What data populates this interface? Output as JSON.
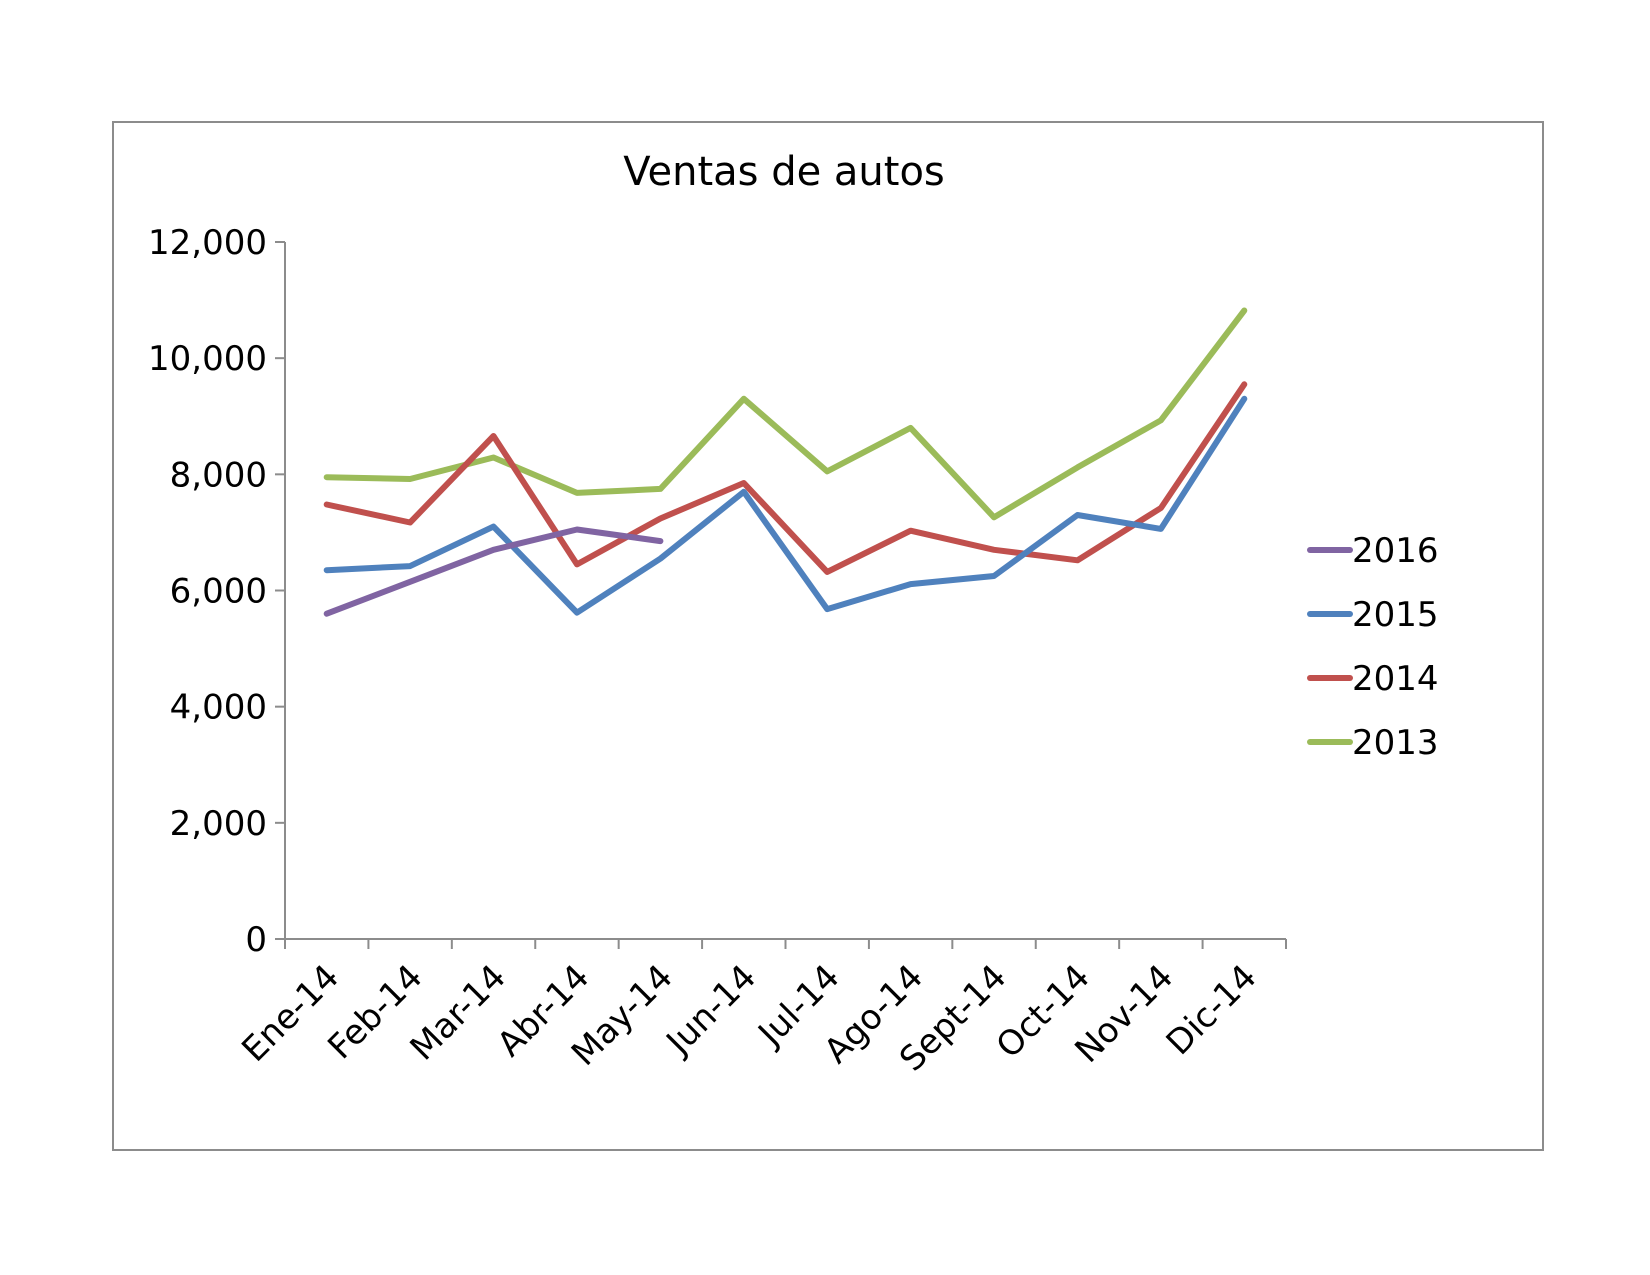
{
  "chart_data": {
    "type": "line",
    "title": "Ventas de autos",
    "xlabel": "",
    "ylabel": "",
    "ylim": [
      0,
      12000
    ],
    "yticks": [
      0,
      2000,
      4000,
      6000,
      8000,
      10000,
      12000
    ],
    "ytick_labels": [
      "0",
      "2,000",
      "4,000",
      "6,000",
      "8,000",
      "10,000",
      "12,000"
    ],
    "categories": [
      "Ene-14",
      "Feb-14",
      "Mar-14",
      "Abr-14",
      "May-14",
      "Jun-14",
      "Jul-14",
      "Ago-14",
      "Sept-14",
      "Oct-14",
      "Nov-14",
      "Dic-14"
    ],
    "grid": false,
    "legend_position": "right",
    "series": [
      {
        "name": "2016",
        "color": "#8064a2",
        "values": [
          5600,
          6150,
          6700,
          7050,
          6850,
          null,
          null,
          null,
          null,
          null,
          null,
          null
        ]
      },
      {
        "name": "2015",
        "color": "#4f81bd",
        "values": [
          6350,
          6420,
          7100,
          5620,
          6550,
          7700,
          5680,
          6110,
          6250,
          7300,
          7060,
          9300
        ]
      },
      {
        "name": "2014",
        "color": "#c0504d",
        "values": [
          7480,
          7170,
          8660,
          6450,
          7240,
          7850,
          6320,
          7030,
          6700,
          6520,
          7420,
          9550
        ]
      },
      {
        "name": "2013",
        "color": "#9bbb59",
        "values": [
          7950,
          7920,
          8290,
          7680,
          7750,
          9300,
          8050,
          8800,
          7260,
          8120,
          8930,
          10820
        ]
      }
    ]
  }
}
